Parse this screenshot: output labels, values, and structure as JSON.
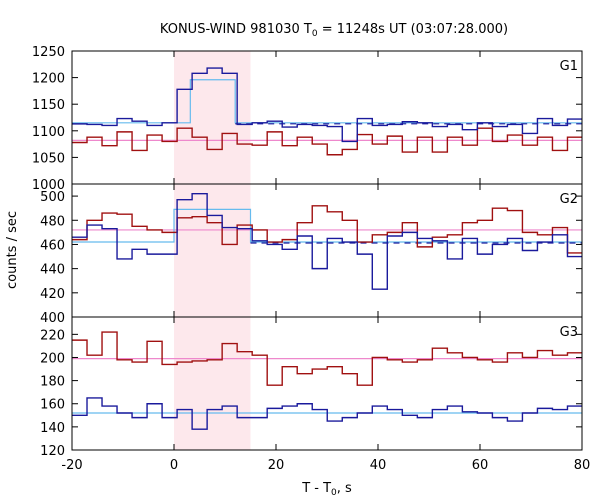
{
  "chart_data": {
    "type": "line",
    "title": "KONUS-WIND 981030 T",
    "title_sub": "0",
    "title_tail": " = 11248s UT (03:07:28.000)",
    "xlabel": "T - T",
    "xlabel_sub": "0",
    "xlabel_tail": ", s",
    "ylabel": "counts / sec",
    "xlim": [
      -20,
      80
    ],
    "x_ticks": [
      "-20",
      "0",
      "20",
      "40",
      "60",
      "80"
    ],
    "x_tick_values": [
      -20,
      0,
      20,
      40,
      60,
      80
    ],
    "shaded_interval": [
      0,
      15
    ],
    "colors": {
      "series1": "#1a1a9c",
      "series2": "#a01010",
      "mean": "#ee88cc",
      "level": "#66bbee",
      "fill": "#fde8ec"
    },
    "bin_start": -20,
    "bin_width": 2.944,
    "panels": [
      {
        "label": "G1",
        "ylim": [
          1000,
          1250
        ],
        "y_ticks": [
          "1000",
          "1050",
          "1100",
          "1150",
          "1200",
          "1250"
        ],
        "y_tick_values": [
          1000,
          1050,
          1100,
          1150,
          1200,
          1250
        ],
        "series1": [
          1113,
          1112,
          1110,
          1123,
          1118,
          1110,
          1115,
          1178,
          1208,
          1218,
          1208,
          1112,
          1115,
          1118,
          1107,
          1112,
          1110,
          1108,
          1080,
          1123,
          1110,
          1112,
          1117,
          1115,
          1108,
          1112,
          1102,
          1115,
          1108,
          1112,
          1095,
          1123,
          1110,
          1122,
          1115
        ],
        "series2": [
          1078,
          1088,
          1072,
          1098,
          1063,
          1092,
          1080,
          1105,
          1088,
          1065,
          1095,
          1075,
          1073,
          1098,
          1072,
          1088,
          1075,
          1055,
          1065,
          1093,
          1075,
          1090,
          1060,
          1088,
          1060,
          1088,
          1073,
          1105,
          1080,
          1092,
          1073,
          1088,
          1063,
          1088,
          1078
        ],
        "mean_level": 1082,
        "bg_level": 1115,
        "pulse_level": 1196,
        "pulse_interval": [
          3.2,
          12
        ]
      },
      {
        "label": "G2",
        "ylim": [
          400,
          510
        ],
        "y_ticks": [
          "400",
          "420",
          "440",
          "460",
          "480",
          "500"
        ],
        "y_tick_values": [
          400,
          420,
          440,
          460,
          480,
          500
        ],
        "series1": [
          466,
          476,
          473,
          448,
          456,
          452,
          452,
          497,
          502,
          484,
          474,
          473,
          463,
          460,
          456,
          467,
          440,
          465,
          462,
          452,
          423,
          467,
          470,
          465,
          463,
          448,
          465,
          452,
          460,
          465,
          455,
          462,
          468,
          450,
          458
        ],
        "series2": [
          464,
          480,
          486,
          485,
          475,
          472,
          470,
          482,
          483,
          478,
          460,
          476,
          472,
          462,
          464,
          478,
          492,
          487,
          480,
          462,
          468,
          470,
          478,
          458,
          466,
          468,
          478,
          480,
          490,
          488,
          470,
          468,
          474,
          453,
          478
        ],
        "mean_level": 472,
        "bg_level": 462,
        "pulse_level": 489,
        "pulse_interval": [
          0,
          15
        ]
      },
      {
        "label": "G3",
        "ylim": [
          120,
          235
        ],
        "y_ticks": [
          "120",
          "140",
          "160",
          "180",
          "200",
          "220"
        ],
        "y_tick_values": [
          120,
          140,
          160,
          180,
          200,
          220
        ],
        "series1": [
          150,
          165,
          158,
          152,
          148,
          160,
          148,
          155,
          138,
          155,
          158,
          148,
          148,
          156,
          158,
          160,
          155,
          145,
          148,
          152,
          158,
          155,
          150,
          148,
          155,
          158,
          153,
          152,
          148,
          145,
          152,
          156,
          155,
          158,
          153
        ],
        "series2": [
          215,
          202,
          222,
          198,
          196,
          214,
          194,
          196,
          197,
          198,
          212,
          205,
          202,
          176,
          192,
          186,
          190,
          192,
          186,
          176,
          200,
          198,
          196,
          198,
          208,
          204,
          200,
          198,
          196,
          204,
          200,
          206,
          202,
          204,
          198
        ],
        "mean_level": 199,
        "bg_level": 152
      }
    ]
  }
}
